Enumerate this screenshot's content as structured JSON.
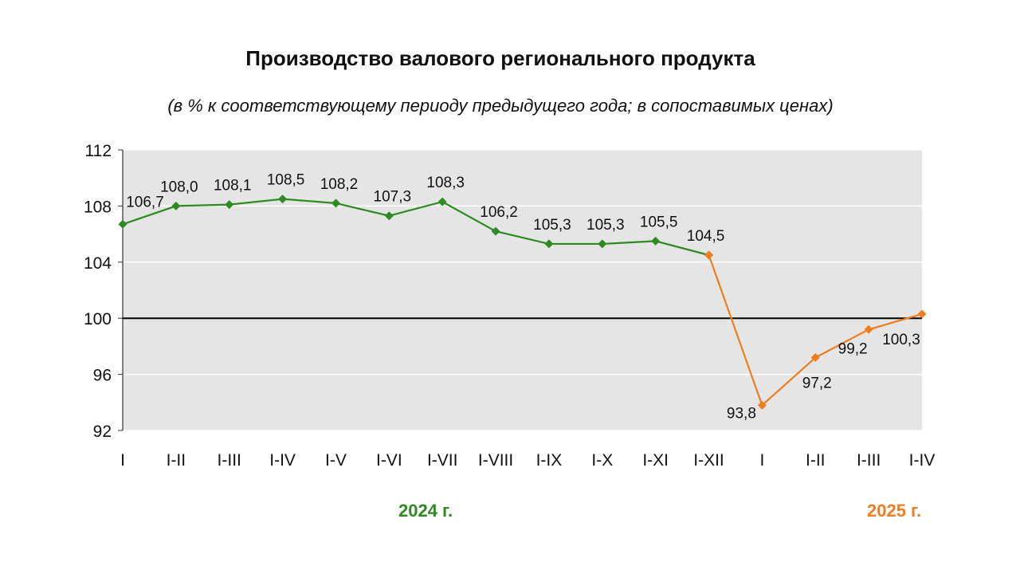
{
  "title": "Производство валового регионального продукта",
  "subtitle": "(в % к соответствующему периоду предыдущего года; в сопоставимых ценах)",
  "years": [
    {
      "label": "2024 г.",
      "color": "#2e8b22"
    },
    {
      "label": "2025 г.",
      "color": "#f07e1e"
    }
  ],
  "chart_data": {
    "type": "line",
    "categories": [
      "I",
      "I-II",
      "I-III",
      "I-IV",
      "I-V",
      "I-VI",
      "I-VII",
      "I-VIII",
      "I-IX",
      "I-X",
      "I-XI",
      "I-XII",
      "I",
      "I-II",
      "I-III",
      "I-IV"
    ],
    "ylim": [
      92,
      112
    ],
    "yticks": [
      92,
      96,
      100,
      104,
      108,
      112
    ],
    "ytick_labels": [
      "92",
      "96",
      "100",
      "104",
      "108",
      "112"
    ],
    "reference_line": 100,
    "grid": true,
    "series": [
      {
        "color": "#2e8b22",
        "points": [
          {
            "x": 0,
            "y": 106.7,
            "label": "106,7"
          },
          {
            "x": 1,
            "y": 108.0,
            "label": "108,0"
          },
          {
            "x": 2,
            "y": 108.1,
            "label": "108,1"
          },
          {
            "x": 3,
            "y": 108.5,
            "label": "108,5"
          },
          {
            "x": 4,
            "y": 108.2,
            "label": "108,2"
          },
          {
            "x": 5,
            "y": 107.3,
            "label": "107,3"
          },
          {
            "x": 6,
            "y": 108.3,
            "label": "108,3"
          },
          {
            "x": 7,
            "y": 106.2,
            "label": "106,2"
          },
          {
            "x": 8,
            "y": 105.3,
            "label": "105,3"
          },
          {
            "x": 9,
            "y": 105.3,
            "label": "105,3"
          },
          {
            "x": 10,
            "y": 105.5,
            "label": "105,5"
          },
          {
            "x": 11,
            "y": 104.5,
            "label": "104,5"
          }
        ]
      },
      {
        "color": "#f07e1e",
        "points": [
          {
            "x": 11,
            "y": 104.5,
            "label": ""
          },
          {
            "x": 12,
            "y": 93.8,
            "label": "93,8"
          },
          {
            "x": 13,
            "y": 97.2,
            "label": "97,2"
          },
          {
            "x": 14,
            "y": 99.2,
            "label": "99,2"
          },
          {
            "x": 15,
            "y": 100.3,
            "label": "100,3"
          }
        ]
      }
    ]
  }
}
